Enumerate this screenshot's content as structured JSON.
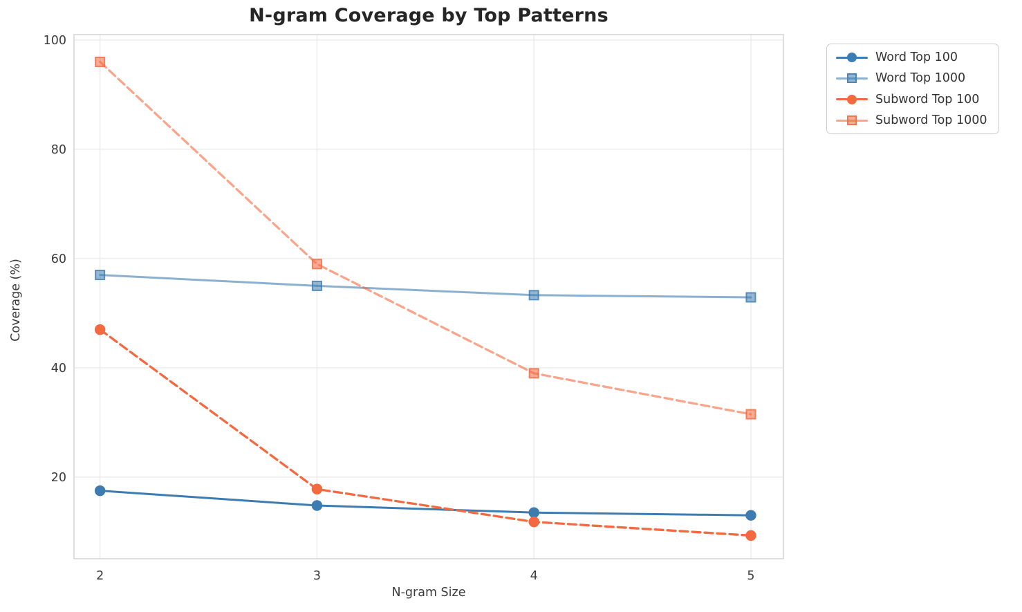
{
  "chart_data": {
    "type": "line",
    "title": "N-gram Coverage by Top Patterns",
    "xlabel": "N-gram Size",
    "ylabel": "Coverage (%)",
    "x": [
      2,
      3,
      4,
      5
    ],
    "xticks": [
      2,
      3,
      4,
      5
    ],
    "yticks": [
      20,
      40,
      60,
      80,
      100
    ],
    "xlim": [
      1.88,
      5.15
    ],
    "ylim": [
      5.05,
      101.0
    ],
    "grid": true,
    "legend_position": "upper right, outside plot",
    "series": [
      {
        "name": "Word Top 100",
        "values": [
          17.5,
          14.8,
          13.5,
          13.0
        ],
        "color": "#3d7cb1",
        "alpha": 1,
        "line_style": "solid",
        "marker": "circle"
      },
      {
        "name": "Word Top 1000",
        "values": [
          57.0,
          55.0,
          53.3,
          52.9
        ],
        "color": "#3d7cb1",
        "alpha": 0.6,
        "line_style": "solid",
        "marker": "square"
      },
      {
        "name": "Subword Top 100",
        "values": [
          47.0,
          17.8,
          11.8,
          9.3
        ],
        "color": "#f4693f",
        "alpha": 1,
        "line_style": "dashed",
        "marker": "circle"
      },
      {
        "name": "Subword Top 1000",
        "values": [
          96.0,
          59.0,
          39.0,
          31.5
        ],
        "color": "#f4693f",
        "alpha": 0.6,
        "line_style": "dashed",
        "marker": "square"
      }
    ],
    "style": {
      "grid_color": "#e8e8e8",
      "spine_color": "#cdcdcd",
      "tick_label_color": "#3b3b3b",
      "title_color": "#262626",
      "legend_border_color": "#cccccc",
      "background_color": "#ffffff"
    }
  }
}
